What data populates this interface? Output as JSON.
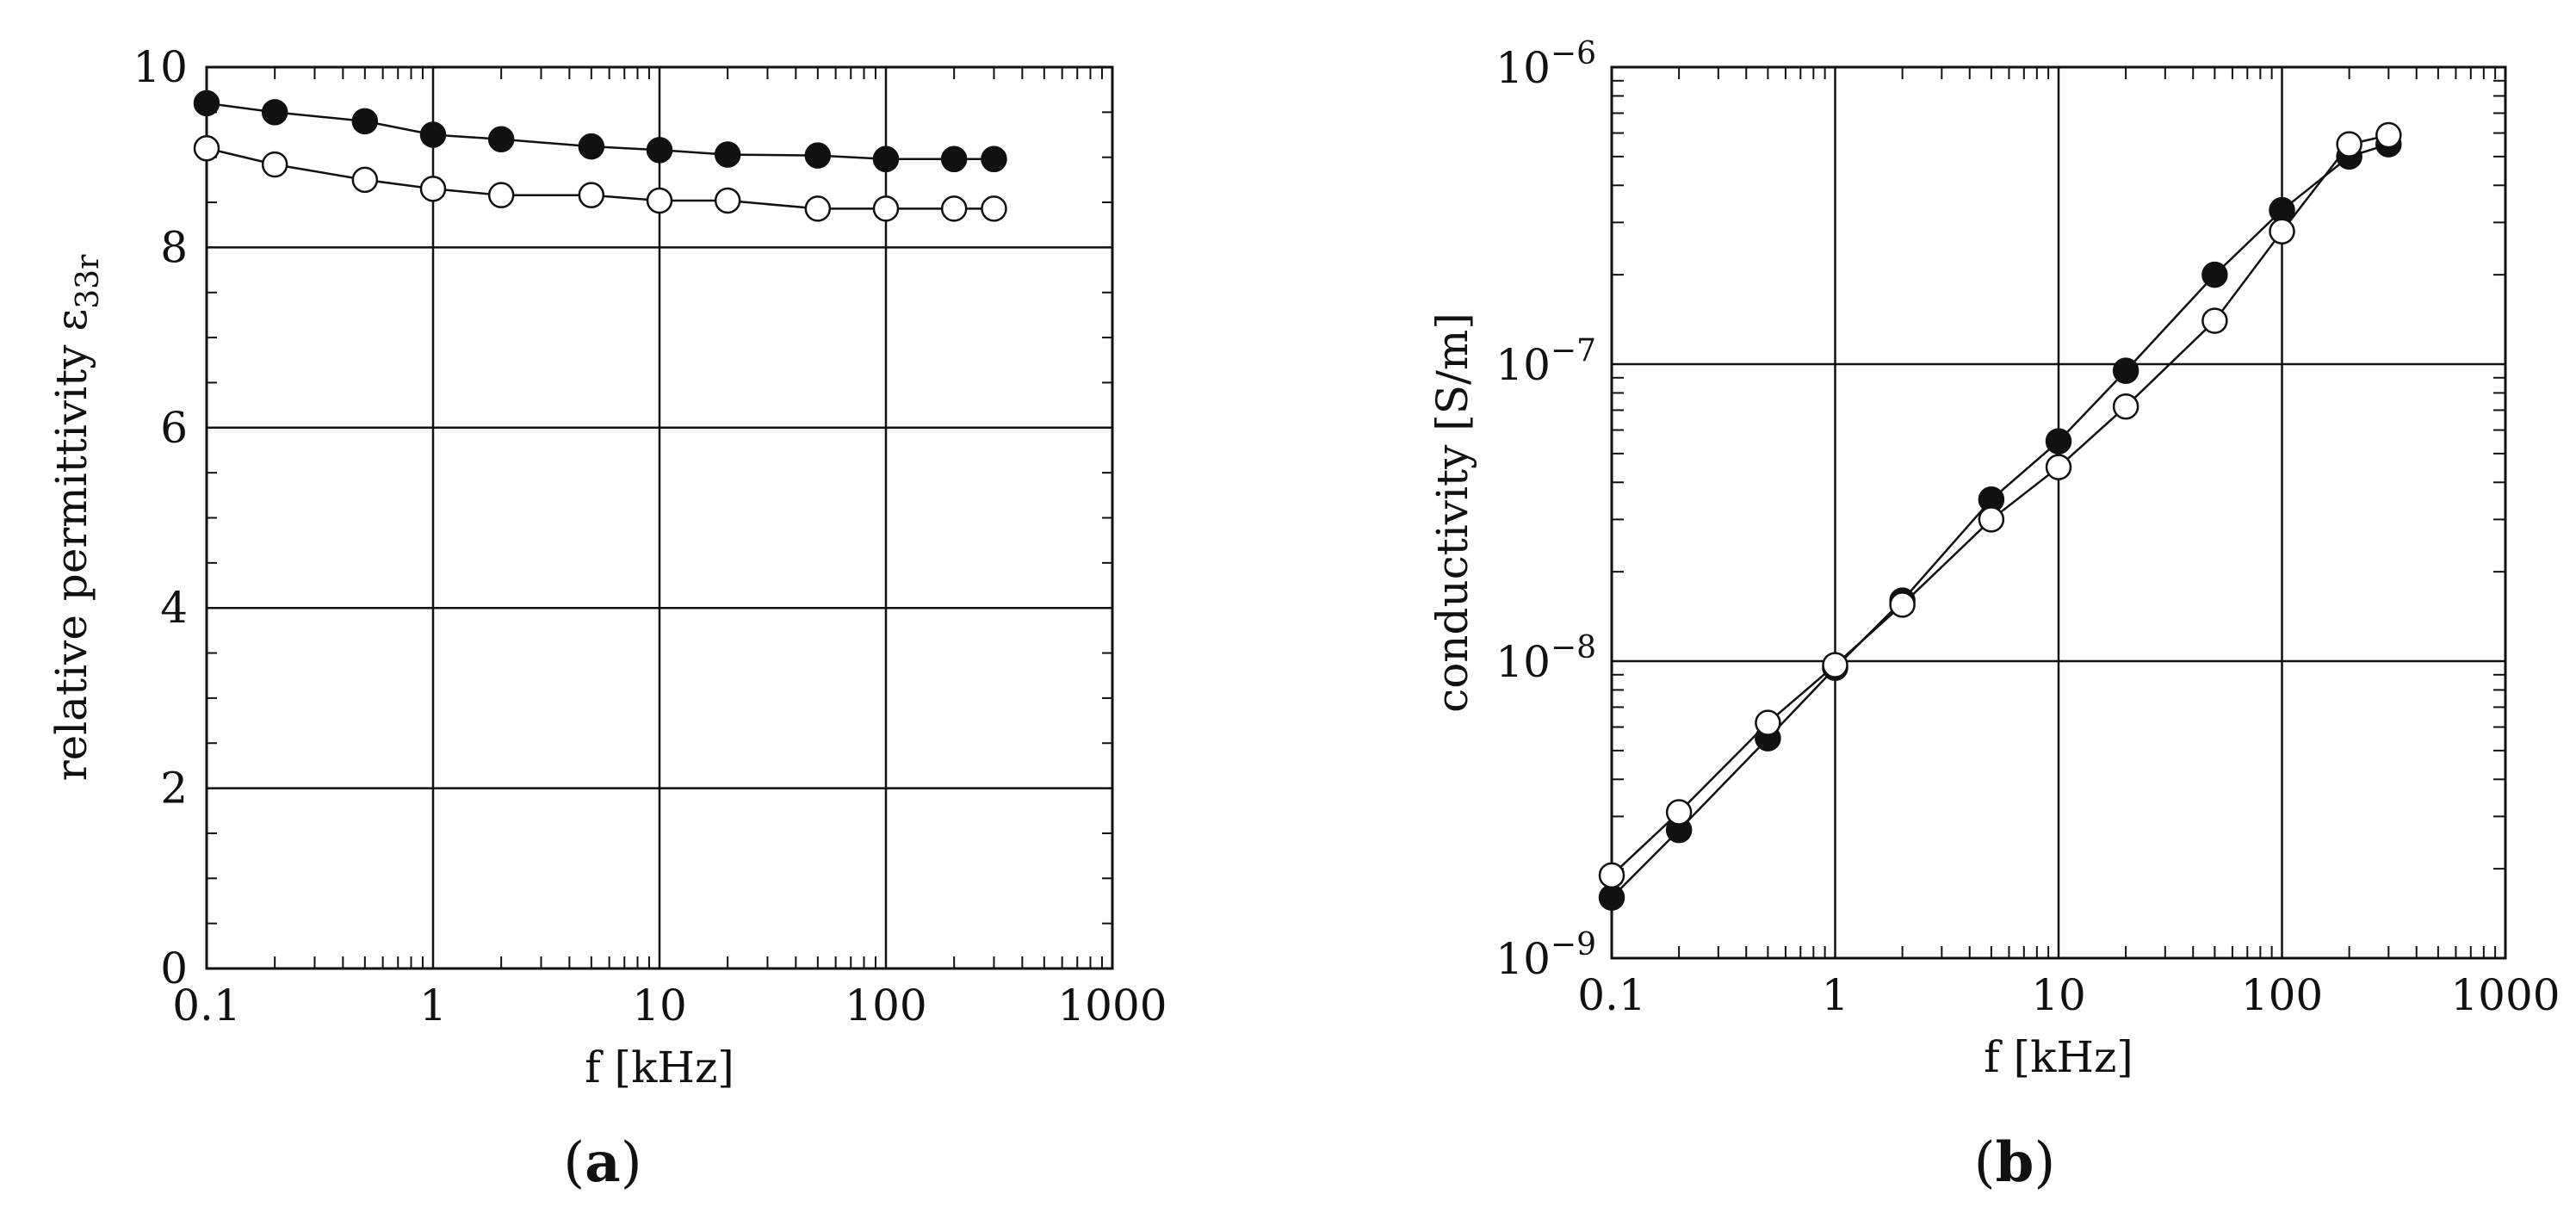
{
  "chart_data": [
    {
      "type": "scatter",
      "panel_label_open": "(",
      "panel_label_letter": "a",
      "panel_label_close": ")",
      "xlabel": "f [kHz]",
      "ylabel_main": "relative permittivity ε",
      "ylabel_sub": "33r",
      "x_scale": "log",
      "y_scale": "linear",
      "xlim": [
        0.1,
        1000
      ],
      "ylim": [
        0,
        10
      ],
      "x_ticks": [
        "0.1",
        "1",
        "10",
        "100",
        "1000"
      ],
      "y_ticks": [
        "0",
        "2",
        "4",
        "6",
        "8",
        "10"
      ],
      "grid": true,
      "series": [
        {
          "marker": "filled-circle",
          "x": [
            0.1,
            0.2,
            0.5,
            1,
            2,
            5,
            10,
            20,
            50,
            100,
            200,
            300
          ],
          "y": [
            9.6,
            9.5,
            9.4,
            9.25,
            9.2,
            9.12,
            9.08,
            9.03,
            9.02,
            8.98,
            8.98,
            8.98
          ]
        },
        {
          "marker": "open-circle",
          "x": [
            0.1,
            0.2,
            0.5,
            1,
            2,
            5,
            10,
            20,
            50,
            100,
            200,
            300
          ],
          "y": [
            9.1,
            8.92,
            8.75,
            8.65,
            8.58,
            8.58,
            8.52,
            8.52,
            8.43,
            8.43,
            8.43,
            8.43
          ]
        }
      ]
    },
    {
      "type": "scatter",
      "panel_label_open": "(",
      "panel_label_letter": "b",
      "panel_label_close": ")",
      "xlabel": "f [kHz]",
      "ylabel_main": "conductivity [S/m]",
      "x_scale": "log",
      "y_scale": "log",
      "xlim": [
        0.1,
        1000
      ],
      "ylim": [
        1e-09,
        1e-06
      ],
      "x_ticks": [
        "0.1",
        "1",
        "10",
        "100",
        "1000"
      ],
      "y_ticks": [
        {
          "base": "10",
          "exp": "−9"
        },
        {
          "base": "10",
          "exp": "−8"
        },
        {
          "base": "10",
          "exp": "−7"
        },
        {
          "base": "10",
          "exp": "−6"
        }
      ],
      "grid": true,
      "series": [
        {
          "marker": "filled-circle",
          "x": [
            0.1,
            0.2,
            0.5,
            1,
            2,
            5,
            10,
            20,
            50,
            100,
            200,
            300
          ],
          "y": [
            1.6e-09,
            2.7e-09,
            5.5e-09,
            9.5e-09,
            1.6e-08,
            3.5e-08,
            5.5e-08,
            9.5e-08,
            2e-07,
            3.3e-07,
            5e-07,
            5.5e-07
          ]
        },
        {
          "marker": "open-circle",
          "x": [
            0.1,
            0.2,
            0.5,
            1,
            2,
            5,
            10,
            20,
            50,
            100,
            200,
            300
          ],
          "y": [
            1.9e-09,
            3.1e-09,
            6.2e-09,
            9.7e-09,
            1.55e-08,
            3e-08,
            4.5e-08,
            7.2e-08,
            1.4e-07,
            2.8e-07,
            5.5e-07,
            5.9e-07
          ]
        }
      ]
    }
  ]
}
